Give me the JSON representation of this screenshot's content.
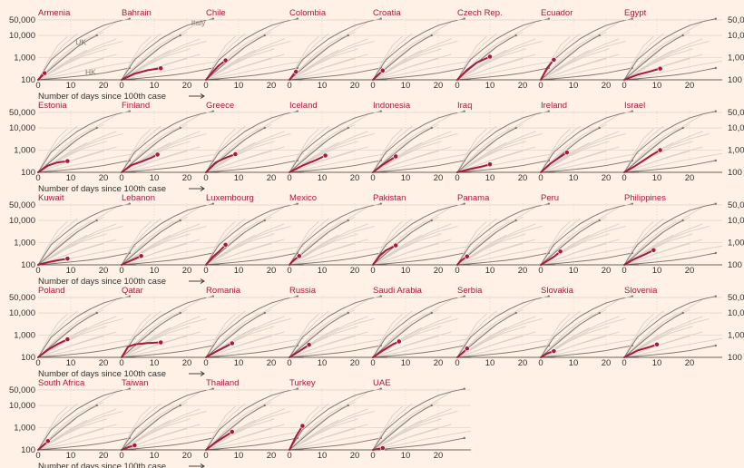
{
  "colors": {
    "background": "#fff1e5",
    "highlight": "#a8183f",
    "context_line": "#d9d1ca",
    "reference_line": "#7d7570",
    "grid": "#e0d7cf",
    "axis": "#3a3531",
    "label": "#33302e"
  },
  "axis_note": "Number of days since 100th case",
  "arrow_icon": "long-right-arrow",
  "reference_labels": [
    "Italy",
    "UK",
    "HK"
  ],
  "chart_data": {
    "type": "line",
    "layout": "small-multiples",
    "yscale": "log",
    "ylim": [
      100,
      60000
    ],
    "xlim": [
      0,
      30
    ],
    "x_ticks": [
      0,
      10,
      20
    ],
    "y_ticks": [
      100,
      1000,
      10000,
      50000
    ],
    "y_tick_labels": [
      "100",
      "1,000",
      "10,000",
      "50,000"
    ],
    "xlabel": "Number of days since 100th case",
    "reference_series": [
      {
        "name": "Italy",
        "x": [
          0,
          4,
          8,
          12,
          16,
          20,
          24,
          28
        ],
        "y": [
          100,
          800,
          2500,
          7000,
          15000,
          28000,
          42000,
          56000
        ]
      },
      {
        "name": "UK",
        "x": [
          0,
          4,
          8,
          12,
          16,
          18
        ],
        "y": [
          100,
          320,
          1000,
          3000,
          7000,
          10000
        ]
      },
      {
        "name": "HK",
        "x": [
          0,
          5,
          10,
          15,
          20,
          25,
          28
        ],
        "y": [
          100,
          115,
          135,
          160,
          200,
          280,
          340
        ]
      }
    ],
    "context_series": [
      {
        "x": [
          0,
          6,
          12,
          18,
          24
        ],
        "y": [
          100,
          600,
          3000,
          12000,
          40000
        ]
      },
      {
        "x": [
          0,
          5,
          10,
          15,
          20
        ],
        "y": [
          100,
          500,
          2000,
          6000,
          14000
        ]
      },
      {
        "x": [
          0,
          6,
          12,
          18,
          24
        ],
        "y": [
          100,
          350,
          1200,
          3200,
          7000
        ]
      },
      {
        "x": [
          0,
          5,
          10,
          15,
          20,
          26
        ],
        "y": [
          100,
          250,
          700,
          1700,
          3200,
          5500
        ]
      },
      {
        "x": [
          0,
          6,
          12,
          18,
          24
        ],
        "y": [
          100,
          200,
          420,
          800,
          1400
        ]
      },
      {
        "x": [
          0,
          8,
          16,
          24,
          30
        ],
        "y": [
          100,
          170,
          300,
          500,
          700
        ]
      },
      {
        "x": [
          0,
          4,
          8,
          12
        ],
        "y": [
          100,
          900,
          4000,
          12000
        ]
      },
      {
        "x": [
          0,
          4,
          8,
          12,
          16
        ],
        "y": [
          100,
          400,
          1500,
          4000,
          9000
        ]
      },
      {
        "x": [
          0,
          7,
          14,
          21
        ],
        "y": [
          100,
          400,
          1200,
          2500
        ]
      },
      {
        "x": [
          0,
          5,
          10,
          15
        ],
        "y": [
          100,
          300,
          900,
          2200
        ]
      },
      {
        "x": [
          0,
          5,
          10,
          15,
          20
        ],
        "y": [
          100,
          180,
          330,
          550,
          900
        ]
      },
      {
        "x": [
          0,
          3,
          6,
          9
        ],
        "y": [
          100,
          700,
          3500,
          9000
        ]
      }
    ],
    "panels": [
      {
        "country": "Armenia",
        "x": [
          0,
          2
        ],
        "y": [
          100,
          200
        ]
      },
      {
        "country": "Bahrain",
        "x": [
          0,
          4,
          8,
          12
        ],
        "y": [
          100,
          190,
          270,
          330
        ]
      },
      {
        "country": "Chile",
        "x": [
          0,
          2,
          4,
          6
        ],
        "y": [
          100,
          220,
          450,
          750
        ]
      },
      {
        "country": "Colombia",
        "x": [
          0,
          2
        ],
        "y": [
          100,
          230
        ]
      },
      {
        "country": "Croatia",
        "x": [
          0,
          3
        ],
        "y": [
          100,
          260
        ]
      },
      {
        "country": "Czech Rep.",
        "x": [
          0,
          3,
          6,
          10
        ],
        "y": [
          100,
          280,
          600,
          1100
        ]
      },
      {
        "country": "Ecuador",
        "x": [
          0,
          2,
          4
        ],
        "y": [
          100,
          350,
          800
        ]
      },
      {
        "country": "Egypt",
        "x": [
          0,
          4,
          8,
          11
        ],
        "y": [
          100,
          170,
          240,
          320
        ]
      },
      {
        "country": "Estonia",
        "x": [
          0,
          3,
          6,
          9
        ],
        "y": [
          100,
          200,
          280,
          320
        ]
      },
      {
        "country": "Finland",
        "x": [
          0,
          3,
          6,
          9,
          11
        ],
        "y": [
          100,
          210,
          300,
          450,
          630
        ]
      },
      {
        "country": "Greece",
        "x": [
          0,
          3,
          6,
          9
        ],
        "y": [
          100,
          280,
          450,
          660
        ]
      },
      {
        "country": "Iceland",
        "x": [
          0,
          4,
          8,
          11
        ],
        "y": [
          100,
          200,
          350,
          570
        ]
      },
      {
        "country": "Indonesia",
        "x": [
          0,
          3,
          7
        ],
        "y": [
          100,
          220,
          520
        ]
      },
      {
        "country": "Iraq",
        "x": [
          0,
          4,
          8,
          10
        ],
        "y": [
          100,
          140,
          190,
          230
        ]
      },
      {
        "country": "Ireland",
        "x": [
          0,
          3,
          5,
          8
        ],
        "y": [
          100,
          250,
          400,
          780
        ]
      },
      {
        "country": "Israel",
        "x": [
          0,
          3,
          6,
          8,
          11
        ],
        "y": [
          100,
          180,
          350,
          550,
          1000
        ]
      },
      {
        "country": "Kuwait",
        "x": [
          0,
          3,
          6,
          9
        ],
        "y": [
          100,
          130,
          160,
          190
        ]
      },
      {
        "country": "Lebanon",
        "x": [
          0,
          3,
          6
        ],
        "y": [
          100,
          160,
          250
        ]
      },
      {
        "country": "Luxembourg",
        "x": [
          0,
          2,
          4,
          6
        ],
        "y": [
          100,
          220,
          400,
          800
        ]
      },
      {
        "country": "Mexico",
        "x": [
          0,
          1,
          3
        ],
        "y": [
          100,
          150,
          250
        ]
      },
      {
        "country": "Pakistan",
        "x": [
          0,
          2,
          4,
          7
        ],
        "y": [
          100,
          250,
          450,
          750
        ]
      },
      {
        "country": "Panama",
        "x": [
          0,
          1,
          3
        ],
        "y": [
          100,
          150,
          240
        ]
      },
      {
        "country": "Peru",
        "x": [
          0,
          2,
          4,
          6
        ],
        "y": [
          100,
          150,
          230,
          400
        ]
      },
      {
        "country": "Philippines",
        "x": [
          0,
          3,
          6,
          9
        ],
        "y": [
          100,
          180,
          280,
          460
        ]
      },
      {
        "country": "Poland",
        "x": [
          0,
          3,
          6,
          9
        ],
        "y": [
          100,
          220,
          400,
          650
        ]
      },
      {
        "country": "Qatar",
        "x": [
          0,
          2,
          4,
          8,
          12
        ],
        "y": [
          100,
          300,
          380,
          440,
          470
        ]
      },
      {
        "country": "Romania",
        "x": [
          0,
          3,
          6,
          8
        ],
        "y": [
          100,
          180,
          300,
          430
        ]
      },
      {
        "country": "Russia",
        "x": [
          0,
          3,
          6
        ],
        "y": [
          100,
          190,
          370
        ]
      },
      {
        "country": "Saudi Arabia",
        "x": [
          0,
          3,
          6,
          8
        ],
        "y": [
          100,
          200,
          380,
          520
        ]
      },
      {
        "country": "Serbia",
        "x": [
          0,
          2,
          3
        ],
        "y": [
          100,
          180,
          250
        ]
      },
      {
        "country": "Slovakia",
        "x": [
          0,
          2,
          4
        ],
        "y": [
          100,
          150,
          190
        ]
      },
      {
        "country": "Slovenia",
        "x": [
          0,
          4,
          8,
          10
        ],
        "y": [
          100,
          200,
          300,
          380
        ]
      },
      {
        "country": "South Africa",
        "x": [
          0,
          2,
          3
        ],
        "y": [
          100,
          180,
          250
        ]
      },
      {
        "country": "Taiwan",
        "x": [
          0,
          2,
          4
        ],
        "y": [
          100,
          130,
          160
        ]
      },
      {
        "country": "Thailand",
        "x": [
          0,
          3,
          6,
          8
        ],
        "y": [
          100,
          220,
          420,
          650
        ]
      },
      {
        "country": "Turkey",
        "x": [
          0,
          2,
          4
        ],
        "y": [
          100,
          400,
          1200
        ]
      },
      {
        "country": "UAE",
        "x": [
          0,
          3
        ],
        "y": [
          100,
          120
        ]
      }
    ]
  }
}
